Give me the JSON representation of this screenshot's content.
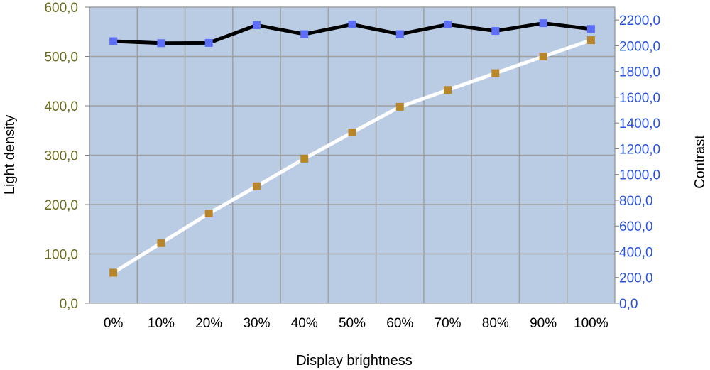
{
  "chart_data": {
    "type": "line",
    "xlabel": "Display brightness",
    "ylabel": "Light density",
    "y2label": "Contrast",
    "categories": [
      "0%",
      "10%",
      "20%",
      "30%",
      "40%",
      "50%",
      "60%",
      "70%",
      "80%",
      "90%",
      "100%"
    ],
    "ylim": [
      0,
      600
    ],
    "y2lim": [
      0,
      2300
    ],
    "yticks": [
      "0,0",
      "100,0",
      "200,0",
      "300,0",
      "400,0",
      "500,0",
      "600,0"
    ],
    "y2ticks": [
      "0,0",
      "200,0",
      "400,0",
      "600,0",
      "800,0",
      "1000,0",
      "1200,0",
      "1400,0",
      "1600,0",
      "1800,0",
      "2000,0",
      "2200,0"
    ],
    "grid": true,
    "series": [
      {
        "axis": "left",
        "values": [
          62,
          122,
          182,
          237,
          293,
          346,
          398,
          432,
          466,
          500,
          533
        ],
        "line_color": "#ffffff",
        "marker_color": "#b8862a"
      },
      {
        "axis": "right",
        "values": [
          2035,
          2020,
          2022,
          2160,
          2090,
          2165,
          2090,
          2165,
          2115,
          2175,
          2130
        ],
        "line_color": "#000000",
        "marker_color": "#5b6ef5"
      }
    ],
    "plot_background": "#b9cce4"
  }
}
